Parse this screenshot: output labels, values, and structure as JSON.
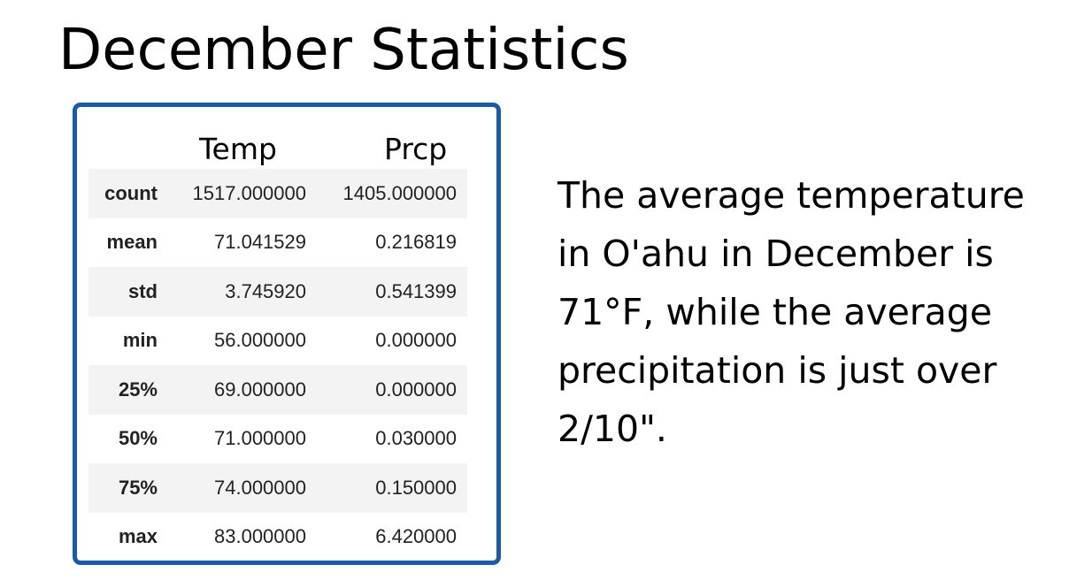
{
  "title": "December Statistics",
  "table": {
    "columns": [
      "Temp",
      "Prcp"
    ],
    "rows": [
      {
        "label": "count",
        "temp": "1517.000000",
        "prcp": "1405.000000"
      },
      {
        "label": "mean",
        "temp": "71.041529",
        "prcp": "0.216819"
      },
      {
        "label": "std",
        "temp": "3.745920",
        "prcp": "0.541399"
      },
      {
        "label": "min",
        "temp": "56.000000",
        "prcp": "0.000000"
      },
      {
        "label": "25%",
        "temp": "69.000000",
        "prcp": "0.000000"
      },
      {
        "label": "50%",
        "temp": "71.000000",
        "prcp": "0.030000"
      },
      {
        "label": "75%",
        "temp": "74.000000",
        "prcp": "0.150000"
      },
      {
        "label": "max",
        "temp": "83.000000",
        "prcp": "6.420000"
      }
    ]
  },
  "description": "The average temperature in O'ahu in December is 71°F, while the average precipitation is just over 2/10\".",
  "colors": {
    "frame_border": "#1a5aa6",
    "stripe": "#f3f3f3"
  }
}
